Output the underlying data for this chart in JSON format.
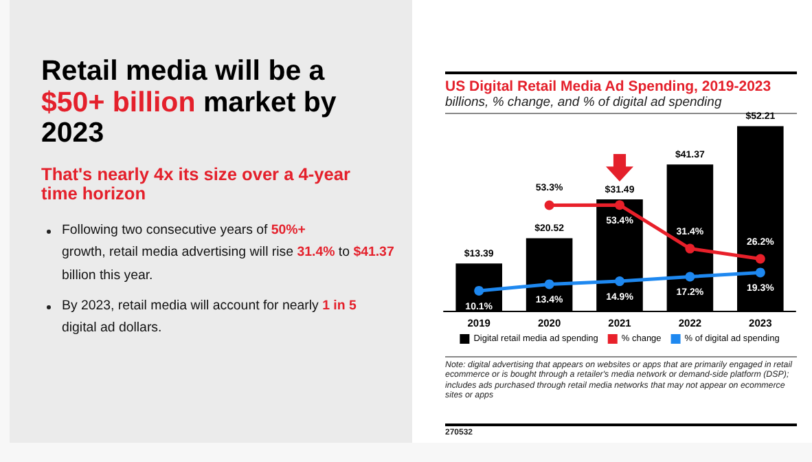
{
  "chart_data": {
    "type": "bar",
    "title": "US Digital Retail Media Ad Spending, 2019-2023",
    "subtitle": "billions, % change, and % of digital ad spending",
    "annotations": [
      "Retail media will be a",
      "$50+ billion",
      "market by",
      "2023",
      "That's nearly 4x its size over a 4-year time horizon",
      "Following two consecutive years of",
      "50%+",
      "growth, retail media advertising will rise",
      "31.4%",
      "to",
      "$41.37",
      "billion this year.",
      "By 2023, retail media will account for nearly",
      "1 in 5",
      "digital ad dollars.",
      "Note: digital advertising that appears on websites or apps that are primarily engaged in retail ecommerce or is bought through a retailer's media network or demand-side platform (DSP); includes ads purchased through retail media networks that may not appear on ecommerce sites or apps",
      "270532"
    ],
    "categories": [
      "2019",
      "2020",
      "2021",
      "2022",
      "2023"
    ],
    "series": [
      {
        "name": "Digital retail media ad spending",
        "color": "#000000",
        "values": [
          13.39,
          20.52,
          31.49,
          41.37,
          52.21
        ],
        "value_labels": [
          "$13.39",
          "$20.52",
          "$31.49",
          "$41.37",
          "$52.21"
        ]
      },
      {
        "name": "% change",
        "type": "line",
        "axis": "y2",
        "color": "#e8202a",
        "values": [
          null,
          53.3,
          53.4,
          31.4,
          26.2
        ],
        "value_labels": [
          null,
          "53.3%",
          "53.4%",
          "31.4%",
          "26.2%"
        ]
      },
      {
        "name": "% of digital ad spending",
        "type": "line",
        "axis": "y2",
        "color": "#1e88f0",
        "values": [
          10.1,
          13.4,
          14.9,
          17.2,
          19.3
        ],
        "value_labels": [
          "10.1%",
          "13.4%",
          "14.9%",
          "17.2%",
          "19.3%"
        ]
      }
    ],
    "ylim": [
      0,
      56
    ],
    "y2lim": [
      0,
      100
    ],
    "tick_labels": "x",
    "legend": "bottom",
    "marker": "circle",
    "line_style": "solid"
  }
}
